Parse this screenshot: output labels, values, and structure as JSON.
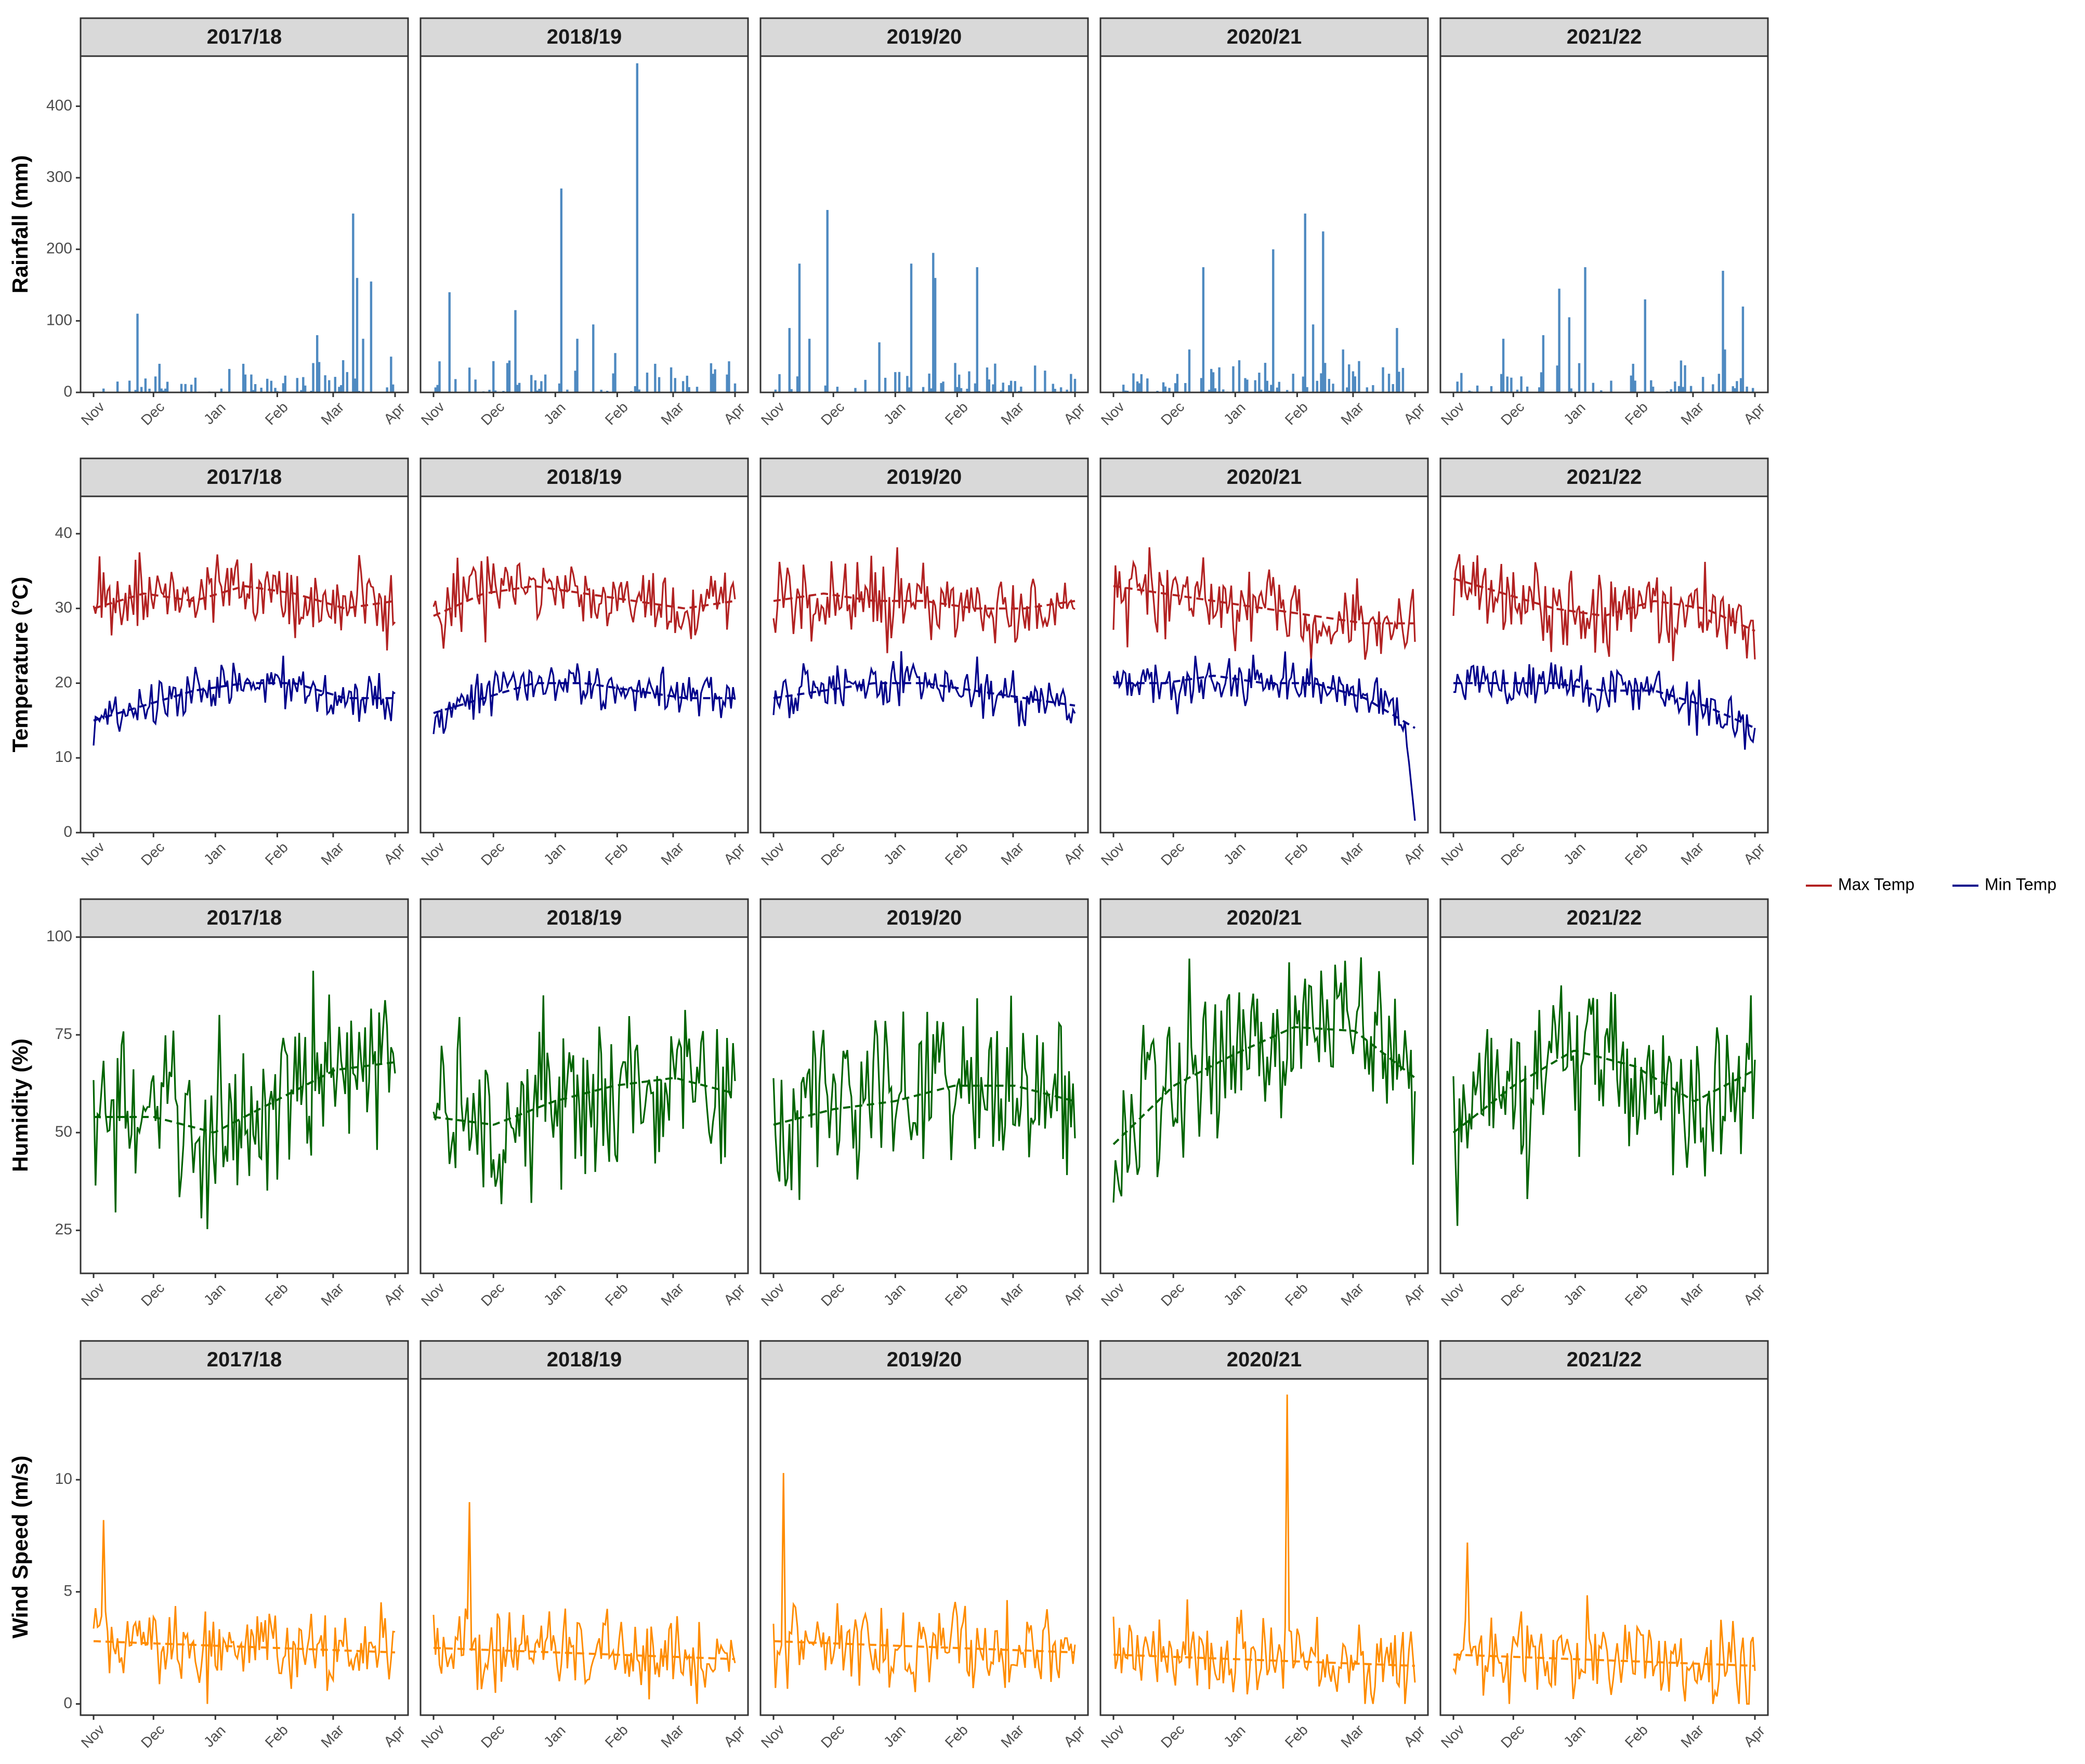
{
  "figure": {
    "facets": [
      "2017/18",
      "2018/19",
      "2019/20",
      "2020/21",
      "2021/22"
    ],
    "months": [
      "Nov",
      "Dec",
      "Jan",
      "Feb",
      "Mar",
      "Apr"
    ]
  },
  "legend": {
    "items": [
      {
        "label": "Max Temp",
        "color": "#b22222"
      },
      {
        "label": "Min Temp",
        "color": "#00008b"
      }
    ]
  },
  "chart_data": [
    {
      "type": "bar",
      "ylabel": "Rainfall (mm)",
      "ylim": [
        0,
        470
      ],
      "yticks": [
        0,
        100,
        200,
        300,
        400
      ],
      "color": "#4f8ac1",
      "facet_peaks": [
        [
          [
            22,
            110
          ],
          [
            33,
            40
          ],
          [
            75,
            40
          ],
          [
            79,
            25
          ],
          [
            112,
            80
          ],
          [
            125,
            45
          ],
          [
            130,
            250
          ],
          [
            132,
            160
          ],
          [
            135,
            75
          ],
          [
            139,
            155
          ],
          [
            149,
            50
          ]
        ],
        [
          [
            8,
            140
          ],
          [
            41,
            115
          ],
          [
            56,
            25
          ],
          [
            64,
            285
          ],
          [
            72,
            75
          ],
          [
            80,
            95
          ],
          [
            91,
            55
          ],
          [
            102,
            460
          ],
          [
            111,
            40
          ],
          [
            119,
            35
          ],
          [
            147,
            25
          ]
        ],
        [
          [
            8,
            90
          ],
          [
            13,
            180
          ],
          [
            18,
            75
          ],
          [
            27,
            255
          ],
          [
            53,
            70
          ],
          [
            69,
            180
          ],
          [
            80,
            195
          ],
          [
            81,
            160
          ],
          [
            102,
            175
          ],
          [
            141,
            5
          ]
        ],
        [
          [
            38,
            60
          ],
          [
            45,
            175
          ],
          [
            53,
            35
          ],
          [
            66,
            20
          ],
          [
            80,
            200
          ],
          [
            96,
            250
          ],
          [
            100,
            95
          ],
          [
            105,
            225
          ],
          [
            115,
            60
          ],
          [
            142,
            90
          ]
        ],
        [
          [
            25,
            75
          ],
          [
            45,
            80
          ],
          [
            53,
            145
          ],
          [
            58,
            105
          ],
          [
            66,
            175
          ],
          [
            90,
            40
          ],
          [
            96,
            130
          ],
          [
            135,
            170
          ],
          [
            136,
            60
          ],
          [
            145,
            120
          ]
        ]
      ]
    },
    {
      "type": "line",
      "ylabel": "Temperature (°C)",
      "ylim": [
        0,
        45
      ],
      "yticks": [
        0,
        10,
        20,
        30,
        40
      ],
      "series": [
        {
          "name": "Max Temp",
          "color": "#b22222",
          "ranges": [
            [
              30,
              32,
              31,
              33,
              32,
              30,
              31
            ],
            [
              29,
              32,
              33,
              32,
              31,
              30,
              31
            ],
            [
              31,
              32,
              31,
              31,
              30,
              30,
              31
            ],
            [
              33,
              32,
              31,
              30,
              29,
              28,
              28
            ],
            [
              34,
              32,
              30,
              29,
              31,
              30,
              27
            ]
          ]
        },
        {
          "name": "Min Temp",
          "color": "#00008b",
          "ranges": [
            [
              15,
              17,
              19,
              20,
              20,
              18,
              18
            ],
            [
              16,
              18,
              20,
              20,
              19,
              18,
              18
            ],
            [
              18,
              19,
              20,
              20,
              19,
              18,
              17
            ],
            [
              20,
              20,
              21,
              20,
              20,
              18,
              14
            ],
            [
              20,
              20,
              20,
              19,
              19,
              17,
              14
            ]
          ]
        }
      ],
      "notes": [
        "2020/21 min temp drops to ~2 near Apr"
      ]
    },
    {
      "type": "line",
      "ylabel": "Humidity (%)",
      "ylim": [
        14,
        100
      ],
      "yticks": [
        25,
        50,
        75,
        100
      ],
      "color": "#006400",
      "trend": [
        [
          54,
          54,
          50,
          58,
          66,
          68
        ],
        [
          54,
          52,
          58,
          62,
          64,
          60
        ],
        [
          52,
          56,
          58,
          62,
          62,
          58
        ],
        [
          47,
          62,
          70,
          77,
          76,
          64
        ],
        [
          50,
          62,
          71,
          67,
          58,
          66
        ]
      ]
    },
    {
      "type": "line",
      "ylabel": "Wind Speed (m/s)",
      "ylim": [
        -0.5,
        14.5
      ],
      "yticks": [
        0,
        5,
        10
      ],
      "color": "#ff8c00",
      "level": [
        2.8,
        2.5,
        2.8,
        2.2,
        2.2
      ],
      "peaks": [
        [
          5,
          8.2
        ],
        [
          18,
          9.0
        ],
        [
          5,
          10.3
        ],
        [
          87,
          13.8
        ],
        [
          7,
          7.2
        ]
      ]
    }
  ]
}
